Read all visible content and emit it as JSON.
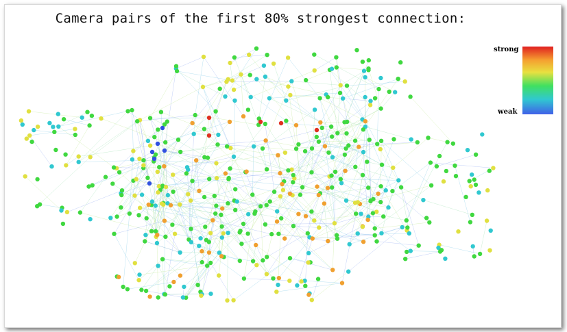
{
  "title": "Camera pairs of the first 80% strongest connection:",
  "legend": {
    "high_label": "strong",
    "low_label": "weak",
    "colors": [
      "#e02020",
      "#f5a030",
      "#e8e040",
      "#40e060",
      "#30c8d0",
      "#4060e8"
    ]
  },
  "graph": {
    "node_colors": {
      "strong": "#e03020",
      "orange": "#f0a030",
      "yellow": "#e0e040",
      "green": "#40d840",
      "cyan": "#30c8d0",
      "blue": "#3050e0"
    },
    "edge_colors": [
      "#8fa8f0",
      "#7fc8e8",
      "#9ee0b0",
      "#c0e890"
    ]
  }
}
